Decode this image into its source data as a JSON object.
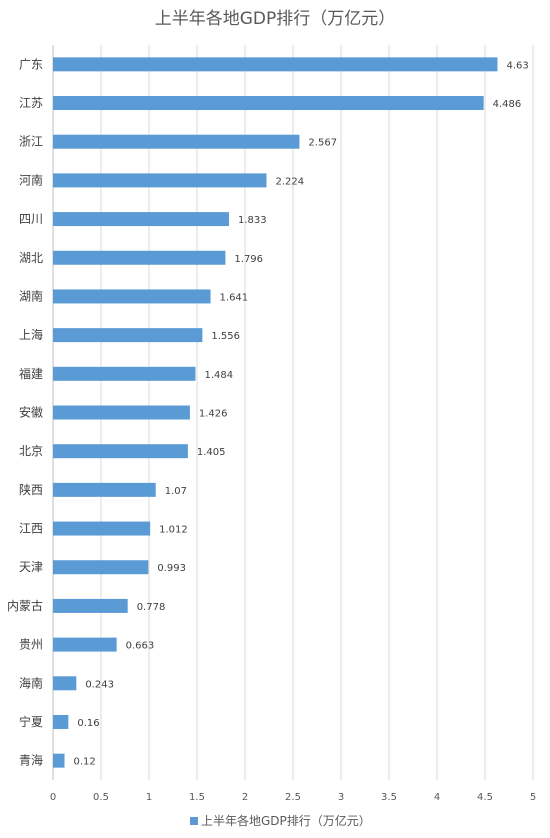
{
  "chart_data": {
    "type": "bar",
    "orientation": "horizontal",
    "title": "上半年各地GDP排行（万亿元）",
    "categories": [
      "广东",
      "江苏",
      "浙江",
      "河南",
      "四川",
      "湖北",
      "湖南",
      "上海",
      "福建",
      "安徽",
      "北京",
      "陕西",
      "江西",
      "天津",
      "内蒙古",
      "贵州",
      "海南",
      "宁夏",
      "青海"
    ],
    "series": [
      {
        "name": "上半年各地GDP排行（万亿元）",
        "values": [
          4.63,
          4.486,
          2.567,
          2.224,
          1.833,
          1.796,
          1.641,
          1.556,
          1.484,
          1.426,
          1.405,
          1.07,
          1.012,
          0.993,
          0.778,
          0.663,
          0.243,
          0.16,
          0.12
        ],
        "value_labels": [
          "4.63",
          "4.486",
          "2.567",
          "2.224",
          "1.833",
          "1.796",
          "1.641",
          "1.556",
          "1.484",
          "1.426",
          "1.405",
          "1.07",
          "1.012",
          "0.993",
          "0.778",
          "0.663",
          "0.243",
          "0.16",
          "0.12"
        ]
      }
    ],
    "xlim": [
      0,
      5
    ],
    "x_ticks": [
      "0",
      "0.5",
      "1",
      "1.5",
      "2",
      "2.5",
      "3",
      "3.5",
      "4",
      "4.5",
      "5"
    ],
    "grid": true,
    "legend_position": "bottom",
    "colors": {
      "bar": "#5b9bd5",
      "grid": "#d9d9d9",
      "axis": "#bfbfbf"
    }
  }
}
